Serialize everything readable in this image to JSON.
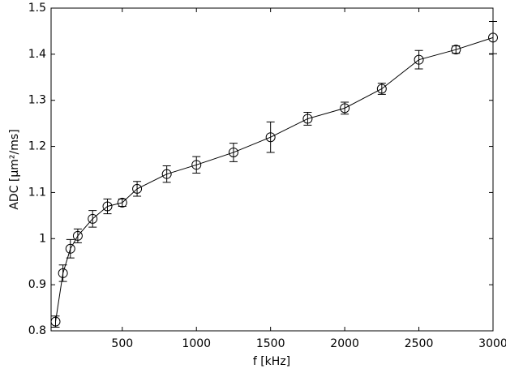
{
  "chart_data": {
    "type": "line",
    "xlabel": "f [kHz]",
    "ylabel": "ADC [μm²/ms]",
    "x": [
      50,
      100,
      150,
      200,
      300,
      400,
      500,
      600,
      800,
      1000,
      1250,
      1500,
      1750,
      2000,
      2250,
      2500,
      2750,
      3000
    ],
    "series": [
      {
        "color": "#000000",
        "values": [
          0.82,
          0.925,
          0.978,
          1.006,
          1.043,
          1.07,
          1.078,
          1.108,
          1.14,
          1.16,
          1.187,
          1.22,
          1.26,
          1.283,
          1.325,
          1.388,
          1.41,
          1.436
        ],
        "errors": [
          0.012,
          0.018,
          0.02,
          0.015,
          0.018,
          0.016,
          0.008,
          0.016,
          0.018,
          0.018,
          0.02,
          0.033,
          0.014,
          0.013,
          0.012,
          0.02,
          0.008,
          0.035
        ]
      }
    ],
    "xlim": [
      20,
      3000
    ],
    "xticks": [
      500,
      1000,
      1500,
      2000,
      2500,
      3000
    ],
    "ylim": [
      0.8,
      1.5
    ],
    "yticks": [
      0.8,
      0.9,
      1,
      1.1,
      1.2,
      1.3,
      1.4,
      1.5
    ],
    "grid": false
  }
}
